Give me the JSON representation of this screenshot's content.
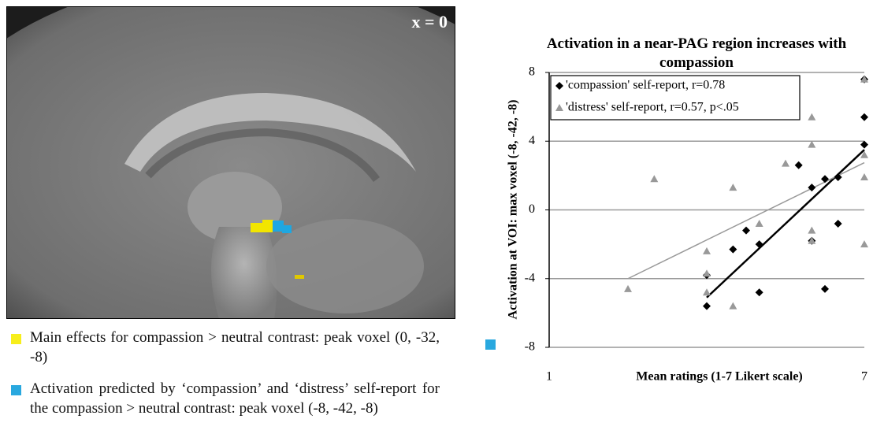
{
  "figure": {
    "slice_label": "x = 0",
    "captions": [
      "Main effects for compassion > neutral contrast:  peak voxel (0, -32, -8)",
      "Activation predicted by ‘compassion’ and ‘distress’ self-report for the  compassion > neutral contrast: peak voxel (-8, -42, -8)"
    ]
  },
  "chart_data": {
    "type": "scatter",
    "title": "Activation in a near-PAG region increases with compassion",
    "x_label": "Mean ratings (1-7 Likert scale)",
    "y_label": "Activation at VOI: max voxel  (-8, -42, -8)",
    "xlim": [
      1,
      7
    ],
    "xticks": [
      1,
      7
    ],
    "ylim": [
      -8,
      8
    ],
    "yticks": [
      -8,
      -4,
      0,
      4,
      8
    ],
    "grid": true,
    "legend": "top-left",
    "series": [
      {
        "name": "'compassion' self-report, r=0.78",
        "color": "#000000",
        "marker": "diamond",
        "x": [
          4,
          4,
          4.5,
          4.75,
          5,
          5,
          5.75,
          6,
          6,
          6.25,
          6.25,
          6.5,
          6.5,
          7,
          7,
          7
        ],
        "values": [
          -5.6,
          -3.8,
          -2.3,
          -1.2,
          -2,
          -4.8,
          2.6,
          1.3,
          -1.8,
          1.8,
          -4.6,
          1.9,
          -0.8,
          3.8,
          5.4,
          7.6
        ],
        "fit": {
          "x": [
            4,
            7
          ],
          "values": [
            -5.1,
            3.5
          ]
        }
      },
      {
        "name": "'distress' self-report, r=0.57, p<.05",
        "color": "#999999",
        "marker": "triangle",
        "x": [
          2.5,
          3,
          4,
          4,
          4,
          4.5,
          4.5,
          5,
          5.5,
          6,
          6,
          6,
          6,
          7,
          7,
          7,
          7
        ],
        "values": [
          -4.6,
          1.8,
          -2.4,
          -3.7,
          -4.8,
          1.3,
          -5.6,
          -0.8,
          2.7,
          5.4,
          3.8,
          -1.2,
          -1.8,
          7.6,
          3.2,
          1.9,
          -2
        ],
        "fit": {
          "x": [
            2.5,
            7
          ],
          "values": [
            -4,
            2.75
          ]
        }
      }
    ]
  }
}
